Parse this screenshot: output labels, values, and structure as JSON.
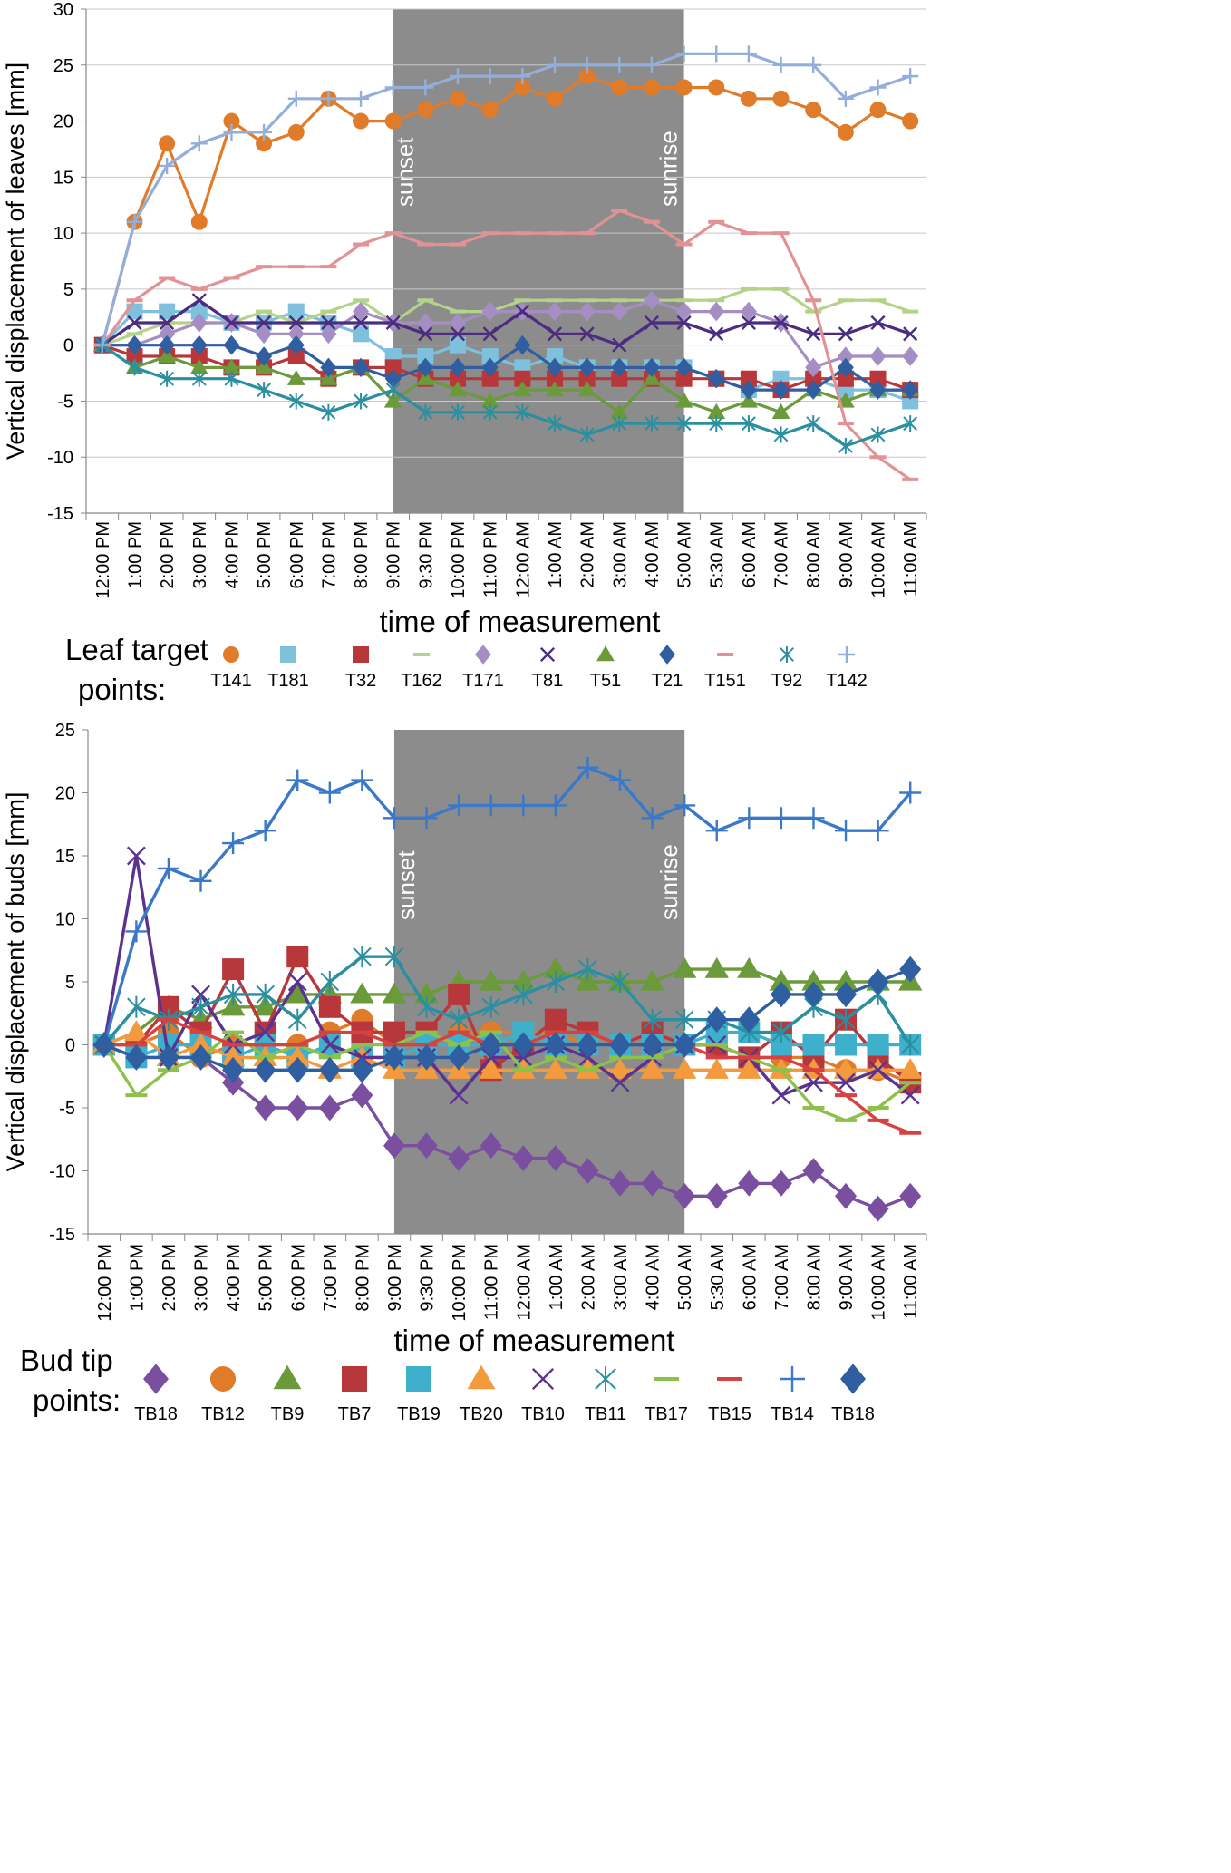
{
  "chart_data": [
    {
      "type": "line",
      "ylabel": "Vertical displacement of leaves [mm]",
      "xlabel": "time of measurement",
      "ylim": [
        -15,
        30
      ],
      "yticks": [
        -15,
        -10,
        -5,
        0,
        5,
        10,
        15,
        20,
        25,
        30
      ],
      "grid": true,
      "categories": [
        "12:00 PM",
        "1:00 PM",
        "2:00 PM",
        "3:00 PM",
        "4:00 PM",
        "5:00 PM",
        "6:00 PM",
        "7:00 PM",
        "8:00 PM",
        "9:00 PM",
        "9:30 PM",
        "10:00 PM",
        "11:00 PM",
        "12:00 AM",
        "1:00 AM",
        "2:00 AM",
        "3:00 AM",
        "4:00 AM",
        "5:00 AM",
        "5:30 AM",
        "6:00 AM",
        "7:00 AM",
        "8:00 AM",
        "9:00 AM",
        "10:00 AM",
        "11:00 AM"
      ],
      "night_band": {
        "from": "9:00 PM",
        "to": "5:00 AM",
        "start_label": "sunset",
        "end_label": "sunrise"
      },
      "legend_title": "Leaf target points:",
      "series": [
        {
          "name": "T141",
          "color": "#E07B2A",
          "marker": "circle",
          "values": [
            0,
            11,
            18,
            11,
            20,
            18,
            19,
            22,
            20,
            20,
            21,
            22,
            21,
            23,
            22,
            24,
            23,
            23,
            23,
            23,
            22,
            22,
            21,
            19,
            21,
            20
          ]
        },
        {
          "name": "T181",
          "color": "#7FC1DC",
          "marker": "square",
          "values": [
            0,
            3,
            3,
            3,
            2,
            2,
            3,
            2,
            1,
            -1,
            -1,
            0,
            -1,
            -2,
            -1,
            -2,
            -2,
            -2,
            -2,
            -3,
            -4,
            -3,
            -3,
            -4,
            -4,
            -5
          ]
        },
        {
          "name": "T32",
          "color": "#B8373A",
          "marker": "square",
          "values": [
            0,
            -1,
            -1,
            -1,
            -2,
            -2,
            -1,
            -3,
            -2,
            -2,
            -3,
            -3,
            -3,
            -3,
            -3,
            -3,
            -3,
            -3,
            -3,
            -3,
            -3,
            -4,
            -3,
            -3,
            -3,
            -4
          ]
        },
        {
          "name": "T162",
          "color": "#B4D28A",
          "marker": "dash",
          "values": [
            0,
            1,
            2,
            2,
            2,
            3,
            2,
            3,
            4,
            2,
            4,
            3,
            3,
            4,
            4,
            4,
            4,
            4,
            4,
            4,
            5,
            5,
            3,
            4,
            4,
            3
          ]
        },
        {
          "name": "T171",
          "color": "#A48EC4",
          "marker": "diamond",
          "values": [
            0,
            0,
            1,
            2,
            2,
            1,
            1,
            1,
            3,
            2,
            2,
            2,
            3,
            3,
            3,
            3,
            3,
            4,
            3,
            3,
            3,
            2,
            -2,
            -1,
            -1,
            -1
          ]
        },
        {
          "name": "T81",
          "color": "#4B2C80",
          "marker": "x",
          "values": [
            0,
            2,
            2,
            4,
            2,
            2,
            2,
            2,
            2,
            2,
            1,
            1,
            1,
            3,
            1,
            1,
            0,
            2,
            2,
            1,
            2,
            2,
            1,
            1,
            2,
            1
          ]
        },
        {
          "name": "T51",
          "color": "#6A9A3A",
          "marker": "triangle",
          "values": [
            0,
            -2,
            -1,
            -2,
            -2,
            -2,
            -3,
            -3,
            -2,
            -5,
            -3,
            -4,
            -5,
            -4,
            -4,
            -4,
            -6,
            -3,
            -5,
            -6,
            -5,
            -6,
            -4,
            -5,
            -4,
            -4
          ]
        },
        {
          "name": "T21",
          "color": "#2F5FA0",
          "marker": "diamond",
          "values": [
            0,
            0,
            0,
            0,
            0,
            -1,
            0,
            -2,
            -2,
            -3,
            -2,
            -2,
            -2,
            0,
            -2,
            -2,
            -2,
            -2,
            -2,
            -3,
            -4,
            -4,
            -4,
            -2,
            -4,
            -4
          ]
        },
        {
          "name": "T151",
          "color": "#E29295",
          "marker": "dash",
          "values": [
            0,
            4,
            6,
            5,
            6,
            7,
            7,
            7,
            9,
            10,
            9,
            9,
            10,
            10,
            10,
            10,
            12,
            11,
            9,
            11,
            10,
            10,
            4,
            -7,
            -10,
            -12
          ]
        },
        {
          "name": "T92",
          "color": "#2A8FA0",
          "marker": "asterisk",
          "values": [
            0,
            -2,
            -3,
            -3,
            -3,
            -4,
            -5,
            -6,
            -5,
            -4,
            -6,
            -6,
            -6,
            -6,
            -7,
            -8,
            -7,
            -7,
            -7,
            -7,
            -7,
            -8,
            -7,
            -9,
            -8,
            -7
          ]
        },
        {
          "name": "T142",
          "color": "#94AEDC",
          "marker": "plus",
          "values": [
            0,
            11,
            16,
            18,
            19,
            19,
            22,
            22,
            22,
            23,
            23,
            24,
            24,
            24,
            25,
            25,
            25,
            25,
            26,
            26,
            26,
            25,
            25,
            22,
            23,
            24
          ]
        }
      ]
    },
    {
      "type": "line",
      "ylabel": "Vertical displacement of buds [mm]",
      "xlabel": "time of measurement",
      "ylim": [
        -15,
        25
      ],
      "yticks": [
        -15,
        -10,
        -5,
        0,
        5,
        10,
        15,
        20,
        25
      ],
      "grid": false,
      "categories": [
        "12:00 PM",
        "1:00 PM",
        "2:00 PM",
        "3:00 PM",
        "4:00 PM",
        "5:00 PM",
        "6:00 PM",
        "7:00 PM",
        "8:00 PM",
        "9:00 PM",
        "9:30 PM",
        "10:00 PM",
        "11:00 PM",
        "12:00 AM",
        "1:00 AM",
        "2:00 AM",
        "3:00 AM",
        "4:00 AM",
        "5:00 AM",
        "5:30 AM",
        "6:00 AM",
        "7:00 AM",
        "8:00 AM",
        "9:00 AM",
        "10:00 AM",
        "11:00 AM"
      ],
      "night_band": {
        "from": "9:00 PM",
        "to": "5:00 AM",
        "start_label": "sunset",
        "end_label": "sunrise"
      },
      "legend_title": "Bud tip points:",
      "series": [
        {
          "name": "TB18",
          "color": "#7A4FA0",
          "marker": "diamond",
          "values": [
            0,
            -1,
            -1,
            -1,
            -3,
            -5,
            -5,
            -5,
            -4,
            -8,
            -8,
            -9,
            -8,
            -9,
            -9,
            -10,
            -11,
            -11,
            -12,
            -12,
            -11,
            -11,
            -10,
            -12,
            -13,
            -12
          ]
        },
        {
          "name": "TB12",
          "color": "#E07B2A",
          "marker": "circle",
          "values": [
            0,
            0,
            1,
            -1,
            0,
            0,
            0,
            1,
            2,
            0,
            0,
            1,
            1,
            1,
            1,
            0,
            0,
            0,
            0,
            0,
            -1,
            -1,
            -1,
            -2,
            -2,
            -3
          ]
        },
        {
          "name": "TB9",
          "color": "#6A9A3A",
          "marker": "triangle",
          "values": [
            0,
            1,
            3,
            2,
            3,
            3,
            4,
            4,
            4,
            4,
            4,
            5,
            5,
            5,
            6,
            5,
            5,
            5,
            6,
            6,
            6,
            5,
            5,
            5,
            5,
            5
          ]
        },
        {
          "name": "TB7",
          "color": "#B8373A",
          "marker": "square",
          "values": [
            0,
            0,
            3,
            1,
            6,
            1,
            7,
            3,
            1,
            1,
            1,
            4,
            -2,
            0,
            2,
            1,
            0,
            1,
            0,
            0,
            -1,
            1,
            -1,
            2,
            -1,
            -3
          ]
        },
        {
          "name": "TB19",
          "color": "#3FB0CC",
          "marker": "square",
          "values": [
            0,
            -1,
            0,
            0,
            -1,
            0,
            -1,
            0,
            -1,
            -1,
            0,
            0,
            0,
            1,
            0,
            0,
            0,
            0,
            0,
            1,
            1,
            0,
            0,
            0,
            0,
            0
          ]
        },
        {
          "name": "TB20",
          "color": "#F39A3C",
          "marker": "triangle",
          "values": [
            0,
            1,
            -1,
            0,
            -1,
            -1,
            -1,
            -2,
            -1,
            -2,
            -2,
            -2,
            -2,
            -2,
            -2,
            -2,
            -2,
            -2,
            -2,
            -2,
            -2,
            -2,
            -2,
            -2,
            -2,
            -2
          ]
        },
        {
          "name": "TB10",
          "color": "#5B3290",
          "marker": "x",
          "values": [
            0,
            15,
            -1,
            4,
            0,
            1,
            5,
            0,
            -1,
            -1,
            -1,
            -4,
            -1,
            -1,
            0,
            -1,
            -3,
            -1,
            0,
            0,
            -1,
            -4,
            -3,
            -3,
            -2,
            -4
          ]
        },
        {
          "name": "TB11",
          "color": "#2A8FA0",
          "marker": "asterisk",
          "values": [
            0,
            3,
            2,
            3,
            4,
            4,
            2,
            5,
            7,
            7,
            3,
            2,
            3,
            4,
            5,
            6,
            5,
            2,
            2,
            2,
            1,
            1,
            3,
            2,
            4,
            0
          ]
        },
        {
          "name": "TB17",
          "color": "#8DC24A",
          "marker": "dash",
          "values": [
            0,
            -4,
            -2,
            -1,
            1,
            -1,
            0,
            -1,
            0,
            0,
            1,
            0,
            1,
            -2,
            -1,
            -2,
            -1,
            -1,
            0,
            0,
            -1,
            -2,
            -5,
            -6,
            -5,
            -3
          ]
        },
        {
          "name": "TB15",
          "color": "#D94040",
          "marker": "dash",
          "values": [
            0,
            0,
            2,
            1,
            0,
            0,
            0,
            1,
            1,
            0,
            0,
            1,
            0,
            0,
            1,
            1,
            0,
            0,
            0,
            -1,
            -1,
            -1,
            -2,
            -4,
            -6,
            -7
          ]
        },
        {
          "name": "TB14",
          "color": "#3A78C8",
          "marker": "plus",
          "values": [
            0,
            9,
            14,
            13,
            16,
            17,
            21,
            20,
            21,
            18,
            18,
            19,
            19,
            19,
            19,
            22,
            21,
            18,
            19,
            17,
            18,
            18,
            18,
            17,
            17,
            20
          ]
        },
        {
          "name": "TB18",
          "color": "#2F5FA0",
          "marker": "diamond",
          "values": [
            0,
            -1,
            -1,
            -1,
            -2,
            -2,
            -2,
            -2,
            -2,
            -1,
            -1,
            -1,
            0,
            0,
            0,
            0,
            0,
            0,
            0,
            2,
            2,
            4,
            4,
            4,
            5,
            6
          ]
        }
      ]
    }
  ]
}
